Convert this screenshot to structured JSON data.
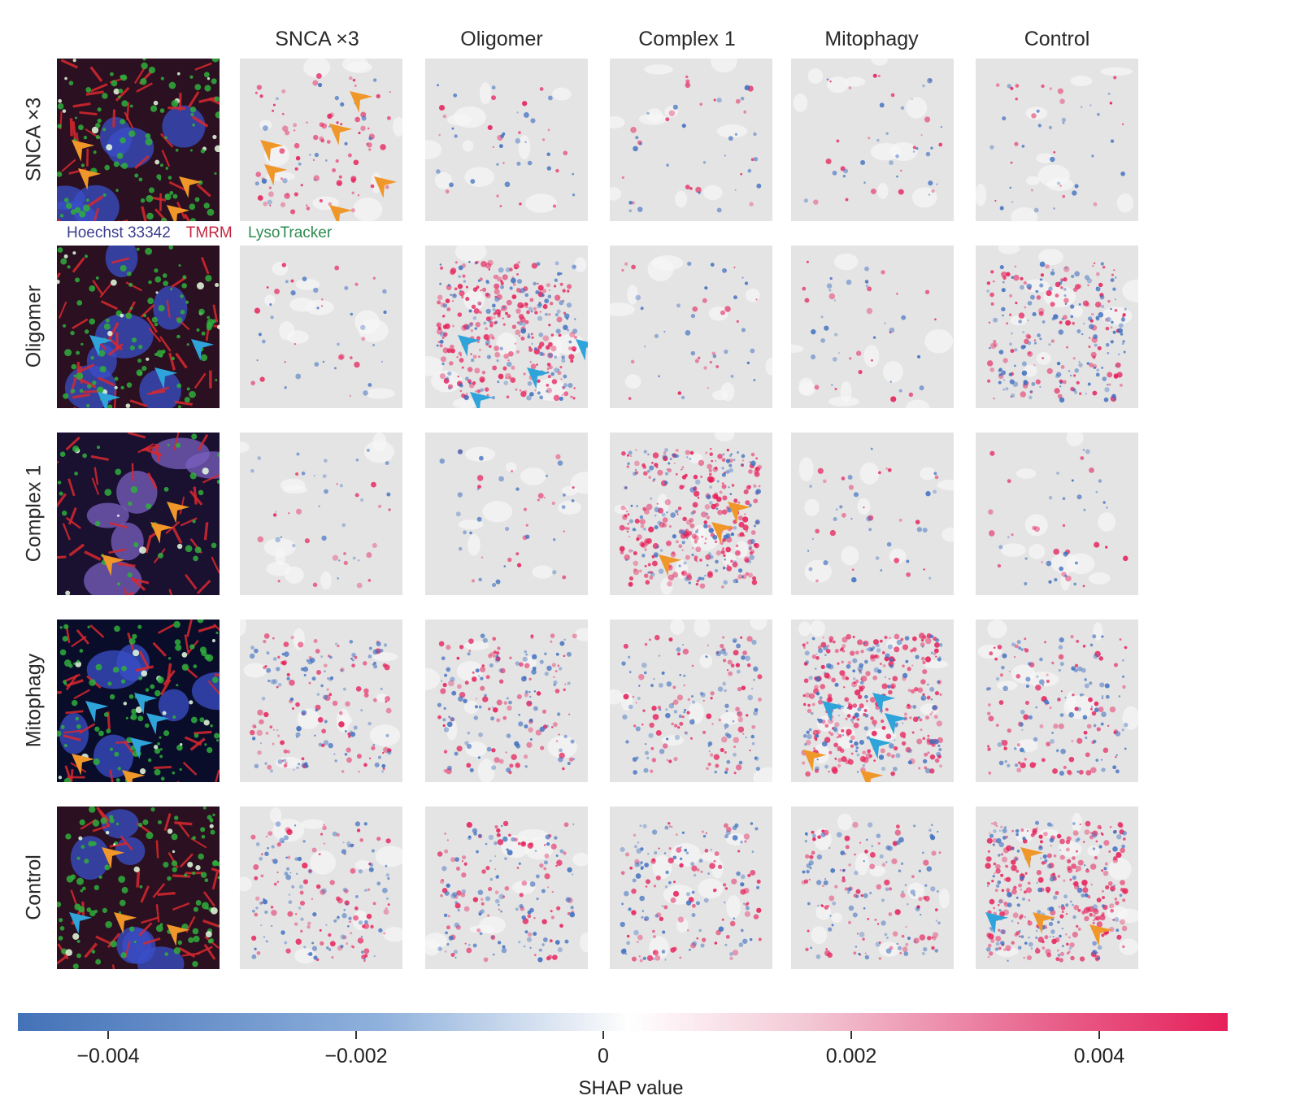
{
  "columns": [
    "SNCA ×3",
    "Oligomer",
    "Complex 1",
    "Mitophagy",
    "Control"
  ],
  "rows": [
    "SNCA ×3",
    "Oligomer",
    "Complex 1",
    "Mitophagy",
    "Control"
  ],
  "stain_legend": {
    "hoechst": "Hoechst 33342",
    "tmrm": "TMRM",
    "lysotracker": "LysoTracker"
  },
  "colorbar": {
    "title": "SHAP value",
    "ticks": [
      "−0.004",
      "−0.002",
      "0",
      "0.002",
      "0.004"
    ],
    "tick_values": [
      -0.004,
      -0.002,
      0,
      0.002,
      0.004
    ],
    "range": [
      -0.0048,
      0.0048
    ],
    "colors": {
      "negative": "#4472b8",
      "neutral": "#ffffff",
      "positive": "#e6205a"
    }
  },
  "arrow_colors": {
    "orange": "#f0972a",
    "blue": "#2ea4db"
  },
  "icons": [
    "arrowhead-icon"
  ]
}
